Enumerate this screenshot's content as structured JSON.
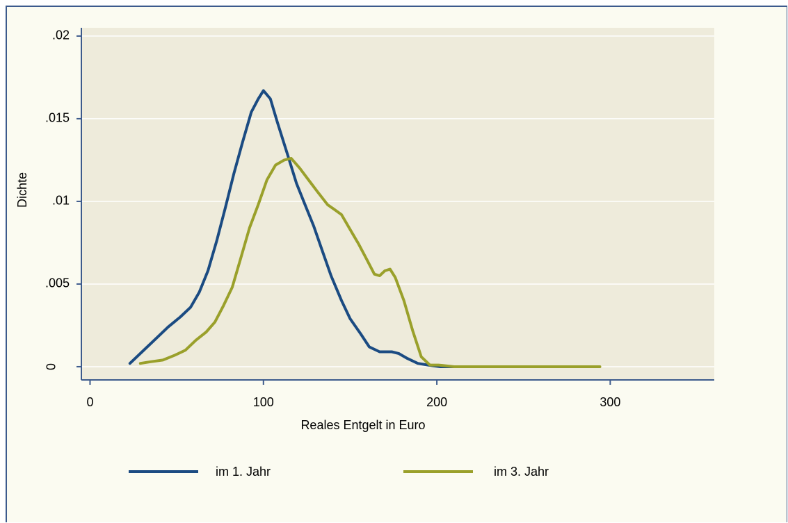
{
  "chart_data": {
    "type": "line",
    "xlabel": "Reales Entgelt in Euro",
    "ylabel": "Dichte",
    "xlim": [
      -5,
      360
    ],
    "ylim": [
      -0.0008,
      0.0205
    ],
    "x_ticks": [
      0,
      100,
      200,
      300
    ],
    "x_tick_labels": [
      "0",
      "100",
      "200",
      "300"
    ],
    "y_ticks": [
      0,
      0.005,
      0.01,
      0.015,
      0.02
    ],
    "y_tick_labels": [
      "0",
      ".005",
      ".01",
      ".015",
      ".02"
    ],
    "grid": true,
    "legend": "bottom",
    "colors": {
      "plot_bg": "#eeebdb",
      "outer_bg": "#fbfbf1",
      "axis": "#3c5a8c",
      "grid": "#ffffff"
    },
    "series": [
      {
        "name": "im 1. Jahr",
        "color": "#1b4b82",
        "x": [
          23,
          30,
          37,
          45,
          52,
          58,
          63,
          68,
          73,
          78,
          83,
          88,
          93,
          97,
          100,
          104,
          108,
          114,
          119,
          124,
          129,
          134,
          139,
          145,
          150,
          156,
          161,
          167,
          171,
          174,
          178,
          183,
          189,
          195,
          202,
          210,
          230,
          260
        ],
        "y": [
          0.0002,
          0.0009,
          0.0016,
          0.0024,
          0.003,
          0.0036,
          0.0045,
          0.0058,
          0.0076,
          0.0096,
          0.0117,
          0.0136,
          0.0154,
          0.0162,
          0.0167,
          0.0162,
          0.0148,
          0.0128,
          0.0111,
          0.0098,
          0.0085,
          0.007,
          0.0055,
          0.004,
          0.0029,
          0.002,
          0.0012,
          0.0009,
          0.0009,
          0.0009,
          0.0008,
          0.0005,
          0.0002,
          0.0001,
          0.0,
          0.0,
          0.0,
          0.0
        ]
      },
      {
        "name": "im 3. Jahr",
        "color": "#9aa02b",
        "x": [
          29,
          35,
          42,
          49,
          55,
          61,
          67,
          72,
          77,
          82,
          87,
          92,
          97,
          102,
          107,
          112,
          116,
          121,
          126,
          131,
          137,
          141,
          145,
          150,
          155,
          160,
          164,
          167,
          170,
          173,
          176,
          181,
          186,
          191,
          196,
          201,
          210,
          225,
          245,
          265,
          294
        ],
        "y": [
          0.0002,
          0.0003,
          0.0004,
          0.0007,
          0.001,
          0.0016,
          0.0021,
          0.0027,
          0.0037,
          0.0048,
          0.0066,
          0.0084,
          0.0098,
          0.0113,
          0.0122,
          0.0125,
          0.0126,
          0.012,
          0.0113,
          0.0106,
          0.0098,
          0.0095,
          0.0092,
          0.0083,
          0.0074,
          0.0064,
          0.0056,
          0.0055,
          0.0058,
          0.0059,
          0.0054,
          0.004,
          0.0022,
          0.0006,
          0.0001,
          0.0001,
          0.0,
          0.0,
          0.0,
          0.0,
          0.0
        ]
      }
    ]
  }
}
